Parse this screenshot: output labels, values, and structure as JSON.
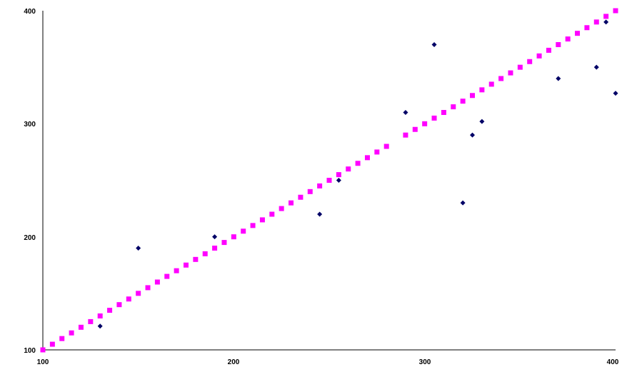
{
  "chart_data": {
    "type": "scatter",
    "title": "",
    "xlabel": "",
    "ylabel": "",
    "xlim": [
      100,
      400
    ],
    "ylim": [
      100,
      400
    ],
    "x_ticks": [
      "100",
      "200",
      "300",
      "400"
    ],
    "y_ticks": [
      "100",
      "200",
      "300",
      "400"
    ],
    "grid": false,
    "legend": "none",
    "series": [
      {
        "marker": "diamond",
        "color": "#000066",
        "points": [
          [
            130,
            121
          ],
          [
            150,
            190
          ],
          [
            190,
            200
          ],
          [
            245,
            220
          ],
          [
            255,
            250
          ],
          [
            290,
            310
          ],
          [
            305,
            370
          ],
          [
            320,
            230
          ],
          [
            325,
            290
          ],
          [
            330,
            302
          ],
          [
            370,
            340
          ],
          [
            390,
            350
          ],
          [
            395,
            390
          ],
          [
            400,
            327
          ]
        ]
      },
      {
        "marker": "square",
        "color": "#ff00ff",
        "points": [
          [
            100,
            100
          ],
          [
            105,
            105
          ],
          [
            110,
            110
          ],
          [
            115,
            115
          ],
          [
            120,
            120
          ],
          [
            125,
            125
          ],
          [
            130,
            130
          ],
          [
            135,
            135
          ],
          [
            140,
            140
          ],
          [
            145,
            145
          ],
          [
            150,
            150
          ],
          [
            155,
            155
          ],
          [
            160,
            160
          ],
          [
            165,
            165
          ],
          [
            170,
            170
          ],
          [
            175,
            175
          ],
          [
            180,
            180
          ],
          [
            185,
            185
          ],
          [
            190,
            190
          ],
          [
            195,
            195
          ],
          [
            200,
            200
          ],
          [
            205,
            205
          ],
          [
            210,
            210
          ],
          [
            215,
            215
          ],
          [
            220,
            220
          ],
          [
            225,
            225
          ],
          [
            230,
            230
          ],
          [
            235,
            235
          ],
          [
            240,
            240
          ],
          [
            245,
            245
          ],
          [
            250,
            250
          ],
          [
            255,
            255
          ],
          [
            260,
            260
          ],
          [
            265,
            265
          ],
          [
            270,
            270
          ],
          [
            275,
            275
          ],
          [
            280,
            280
          ],
          [
            290,
            290
          ],
          [
            295,
            295
          ],
          [
            300,
            300
          ],
          [
            305,
            305
          ],
          [
            310,
            310
          ],
          [
            315,
            315
          ],
          [
            320,
            320
          ],
          [
            325,
            325
          ],
          [
            330,
            330
          ],
          [
            335,
            335
          ],
          [
            340,
            340
          ],
          [
            345,
            345
          ],
          [
            350,
            350
          ],
          [
            355,
            355
          ],
          [
            360,
            360
          ],
          [
            365,
            365
          ],
          [
            370,
            370
          ],
          [
            375,
            375
          ],
          [
            380,
            380
          ],
          [
            385,
            385
          ],
          [
            390,
            390
          ],
          [
            395,
            395
          ],
          [
            400,
            400
          ]
        ]
      }
    ]
  }
}
